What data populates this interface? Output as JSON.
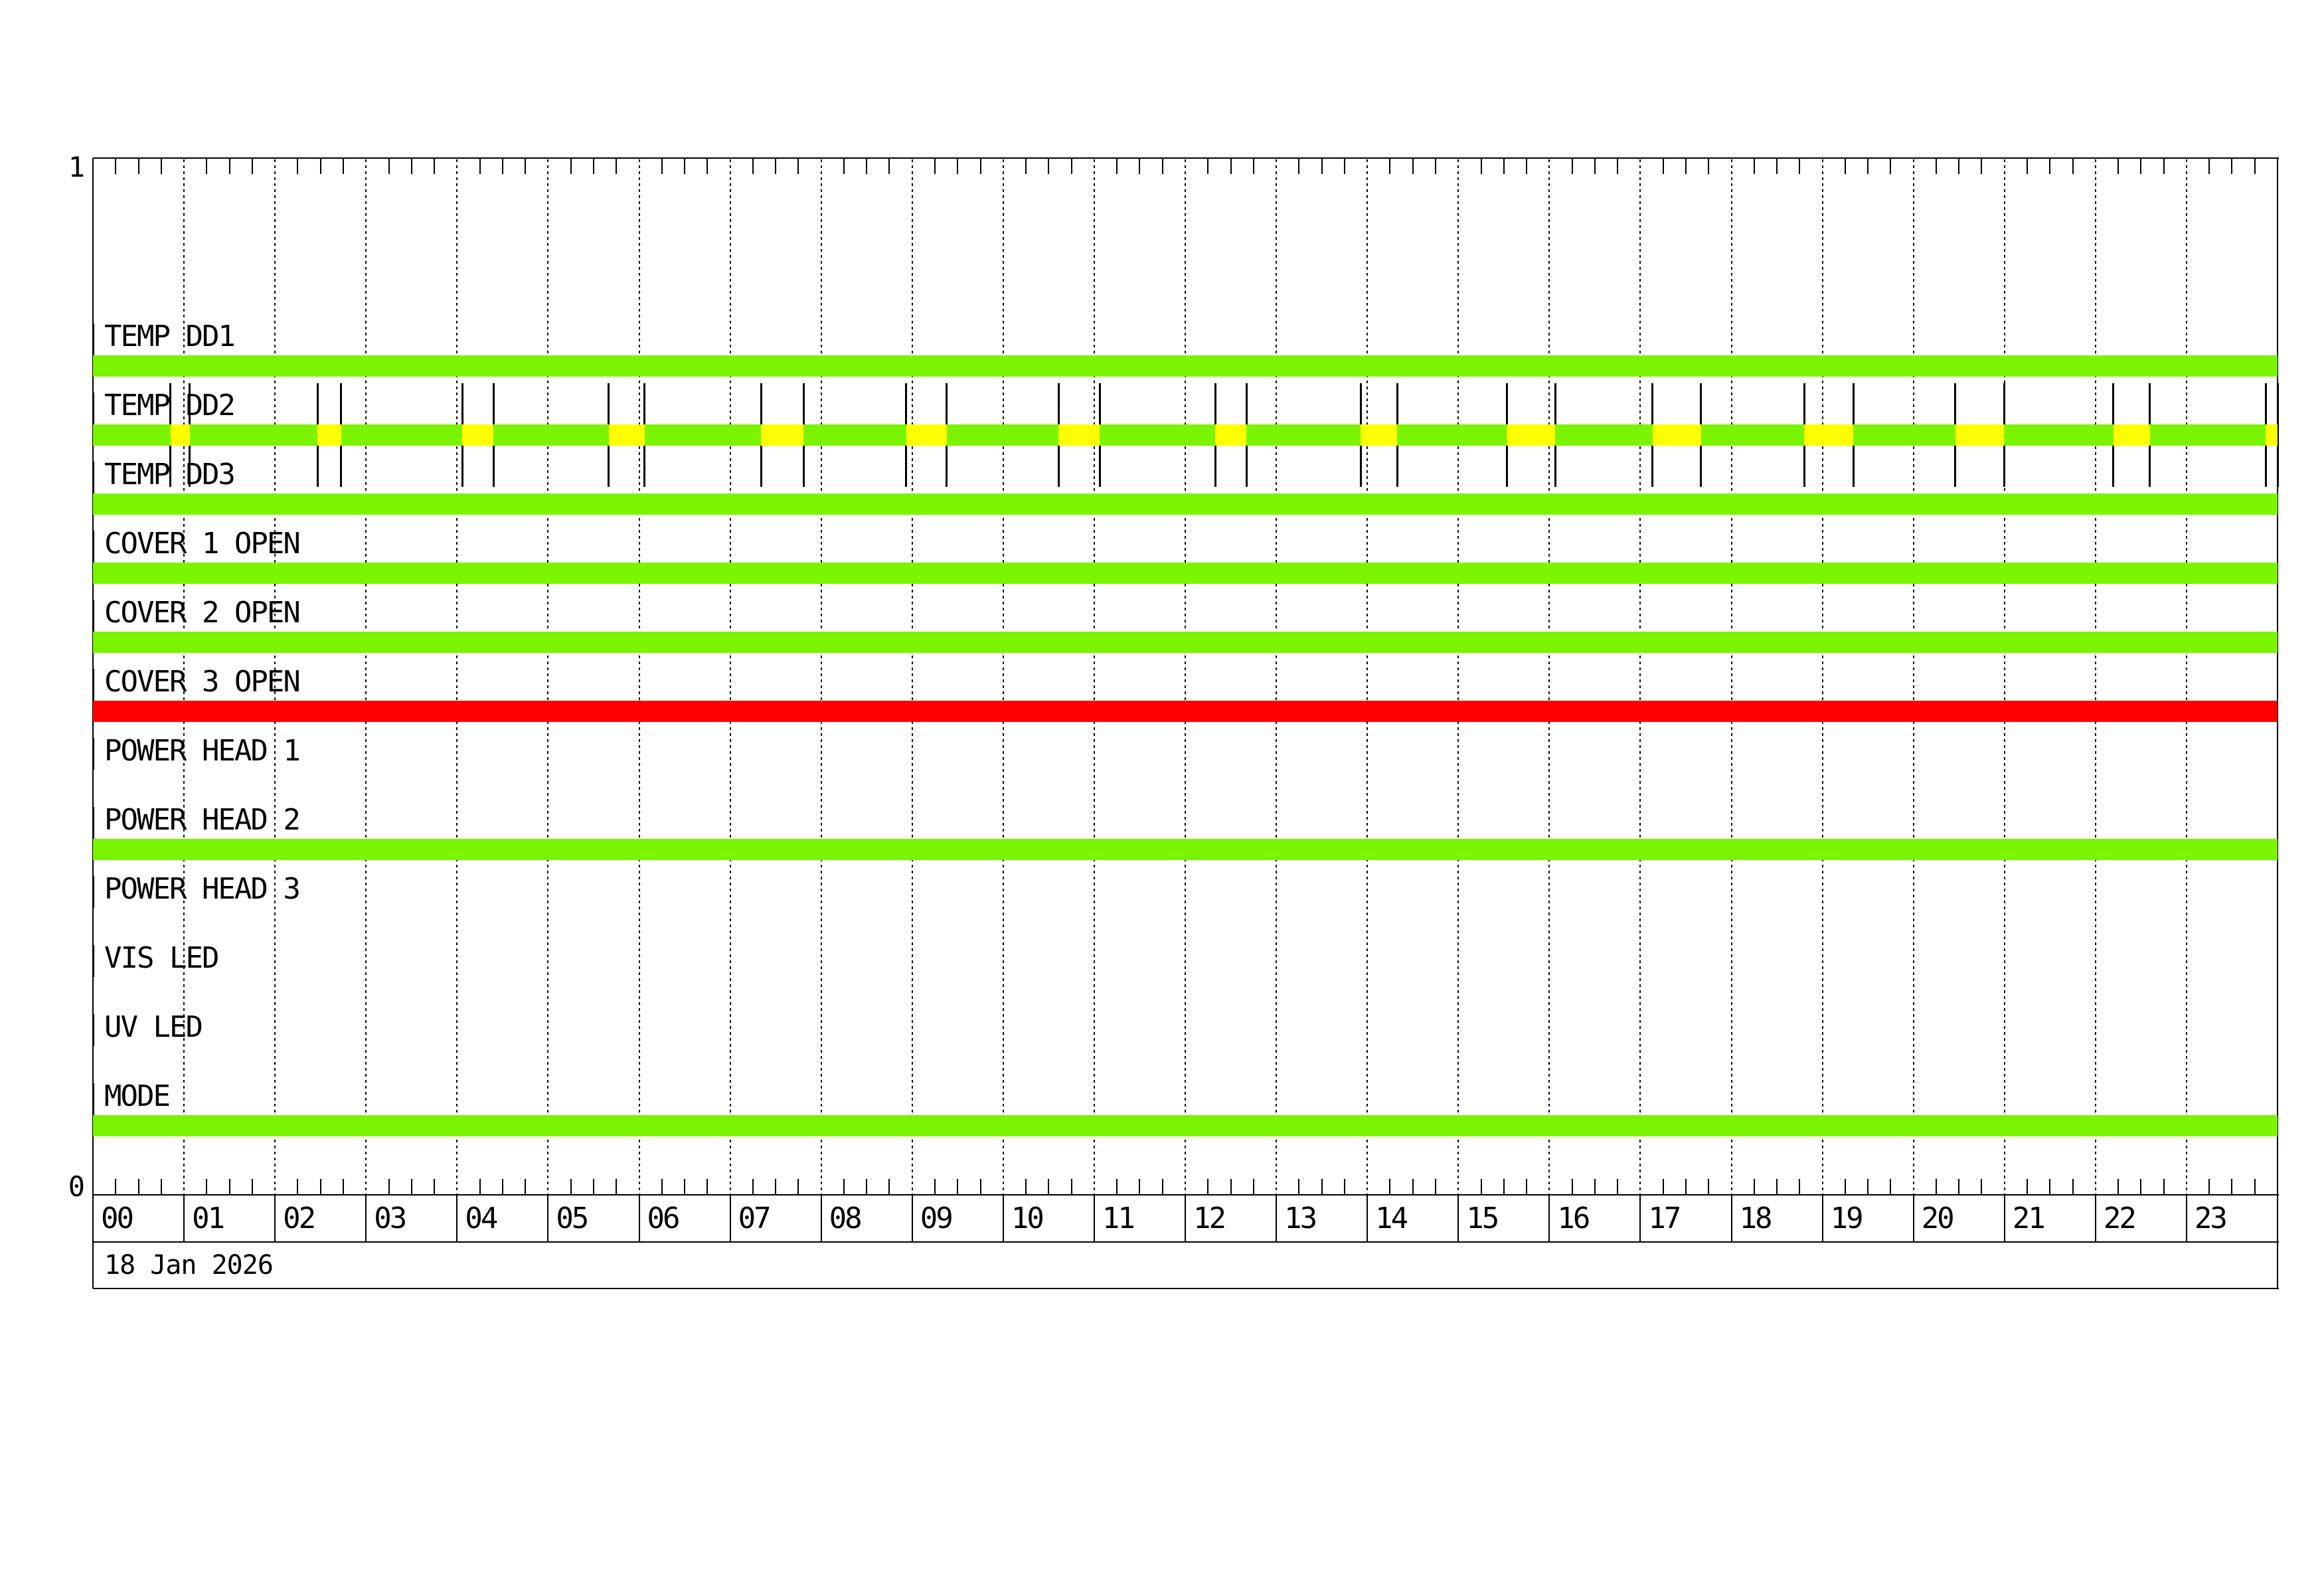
{
  "chart_data": {
    "type": "bar",
    "subtype": "instrument-status-timeline",
    "title": "",
    "date_label": "18 Jan 2026",
    "y_axis": {
      "top_tick_label": "1",
      "bottom_tick_label": "0"
    },
    "x_axis": {
      "unit": "hour of day",
      "start": 0,
      "end": 24,
      "gridline_every_hours": 1,
      "minor_tick_minutes": 15,
      "hour_labels": [
        "00",
        "01",
        "02",
        "03",
        "04",
        "05",
        "06",
        "07",
        "08",
        "09",
        "10",
        "11",
        "12",
        "13",
        "14",
        "15",
        "16",
        "17",
        "18",
        "19",
        "20",
        "21",
        "22",
        "23"
      ]
    },
    "status_colors": {
      "ok": "#7BF400",
      "warning": "#FFFF00",
      "alarm": "#FF0000"
    },
    "rows": [
      {
        "label": "TEMP DD1",
        "base_status": "ok",
        "warning_intervals": []
      },
      {
        "label": "TEMP DD2",
        "base_status": "ok",
        "warning_intervals": [
          [
            0.853,
            1.065
          ],
          [
            2.466,
            2.728
          ],
          [
            4.056,
            4.399
          ],
          [
            5.668,
            6.062
          ],
          [
            7.339,
            7.806
          ],
          [
            8.936,
            9.381
          ],
          [
            10.607,
            11.059
          ],
          [
            12.329,
            12.672
          ],
          [
            13.926,
            14.328
          ],
          [
            15.531,
            16.064
          ],
          [
            17.135,
            17.668
          ],
          [
            18.799,
            19.339
          ],
          [
            20.462,
            20.995
          ],
          [
            22.198,
            22.599
          ],
          [
            23.869,
            24.0
          ]
        ]
      },
      {
        "label": "TEMP DD3",
        "base_status": "ok",
        "warning_intervals": []
      },
      {
        "label": "COVER 1 OPEN",
        "base_status": "ok",
        "warning_intervals": []
      },
      {
        "label": "COVER 2 OPEN",
        "base_status": "ok",
        "warning_intervals": []
      },
      {
        "label": "COVER 3 OPEN",
        "base_status": "alarm",
        "warning_intervals": []
      },
      {
        "label": "POWER HEAD 1",
        "base_status": null,
        "warning_intervals": []
      },
      {
        "label": "POWER HEAD 2",
        "base_status": "ok",
        "warning_intervals": []
      },
      {
        "label": "POWER HEAD 3",
        "base_status": null,
        "warning_intervals": []
      },
      {
        "label": "VIS LED",
        "base_status": null,
        "warning_intervals": []
      },
      {
        "label": "UV LED",
        "base_status": null,
        "warning_intervals": []
      },
      {
        "label": "MODE",
        "base_status": "ok",
        "warning_intervals": []
      }
    ]
  }
}
